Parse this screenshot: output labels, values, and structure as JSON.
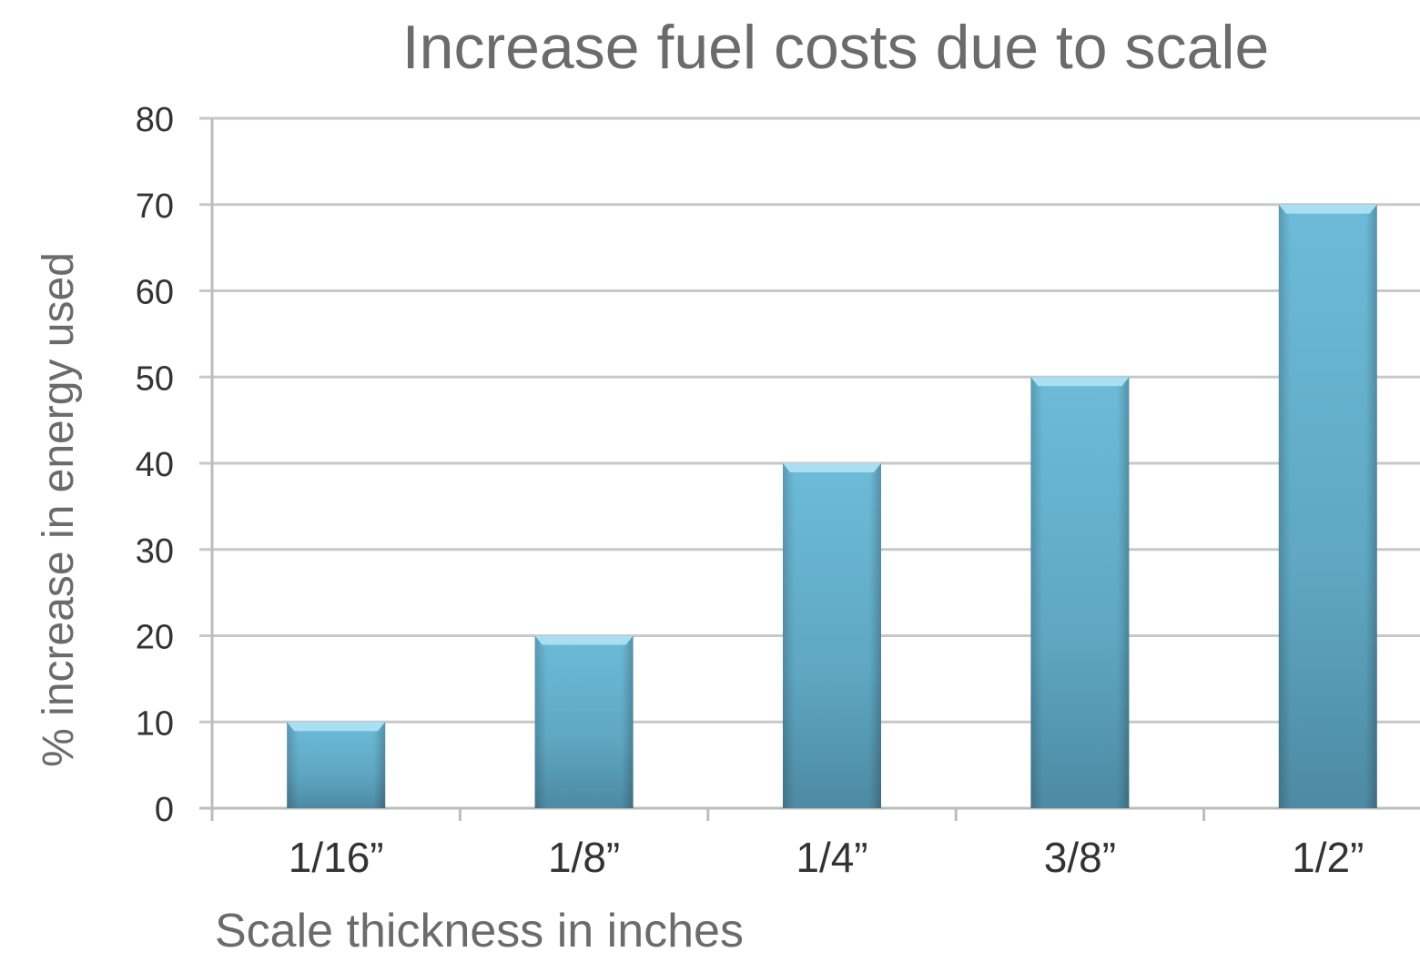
{
  "chart_data": {
    "type": "bar",
    "title": "Increase fuel costs due to scale",
    "xlabel": "Scale thickness in inches",
    "ylabel": "% increase in energy used",
    "categories": [
      "1/16”",
      "1/8”",
      "1/4”",
      "3/8”",
      "1/2”"
    ],
    "values": [
      10,
      20,
      40,
      50,
      70
    ],
    "ylim": [
      0,
      80
    ],
    "yticks": [
      0,
      10,
      20,
      30,
      40,
      50,
      60,
      70,
      80
    ],
    "grid": true,
    "legend": "none",
    "colors": {
      "bar_top": "#6dbbd8",
      "bar_mid": "#5fa7c2",
      "bar_bottom": "#4d8aa3",
      "bar_highlight": "#a9dff1",
      "grid": "#c8c8c8",
      "axis": "#bdbdbd",
      "title_text": "#6b6b6b",
      "label_text": "#333333",
      "axis_title_text": "#6b6b6b"
    }
  }
}
